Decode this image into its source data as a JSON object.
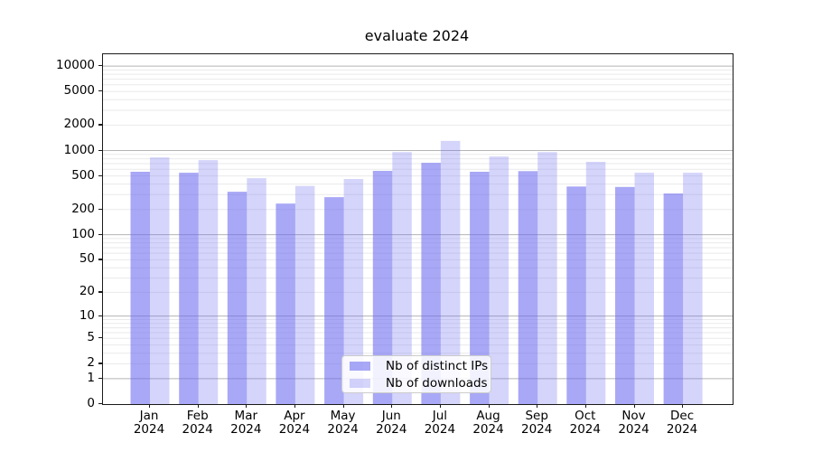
{
  "title": "evaluate 2024",
  "chart_data": {
    "type": "bar",
    "title": "evaluate 2024",
    "categories": [
      "Jan",
      "Feb",
      "Mar",
      "Apr",
      "May",
      "Jun",
      "Jul",
      "Aug",
      "Sep",
      "Oct",
      "Nov",
      "Dec"
    ],
    "x_tick_year": "2024",
    "series": [
      {
        "name": "Nb of distinct IPs",
        "color": "#6969f0",
        "alpha": 0.58,
        "values": [
          560,
          545,
          325,
          235,
          280,
          575,
          715,
          560,
          570,
          375,
          370,
          310
        ]
      },
      {
        "name": "Nb of downloads",
        "color": "#6969f0",
        "alpha": 0.28,
        "values": [
          830,
          770,
          470,
          380,
          460,
          960,
          1300,
          850,
          960,
          735,
          545,
          545
        ]
      }
    ],
    "y_scale": "log1p",
    "y_ticks": [
      0,
      1,
      2,
      5,
      10,
      20,
      50,
      100,
      200,
      500,
      1000,
      2000,
      5000,
      10000
    ],
    "ylim": [
      0,
      13800
    ],
    "grid": true,
    "gridline_major_color": "#b5b5b5",
    "gridline_minor_color": "#eaeaea",
    "legend_position": "lower center"
  }
}
